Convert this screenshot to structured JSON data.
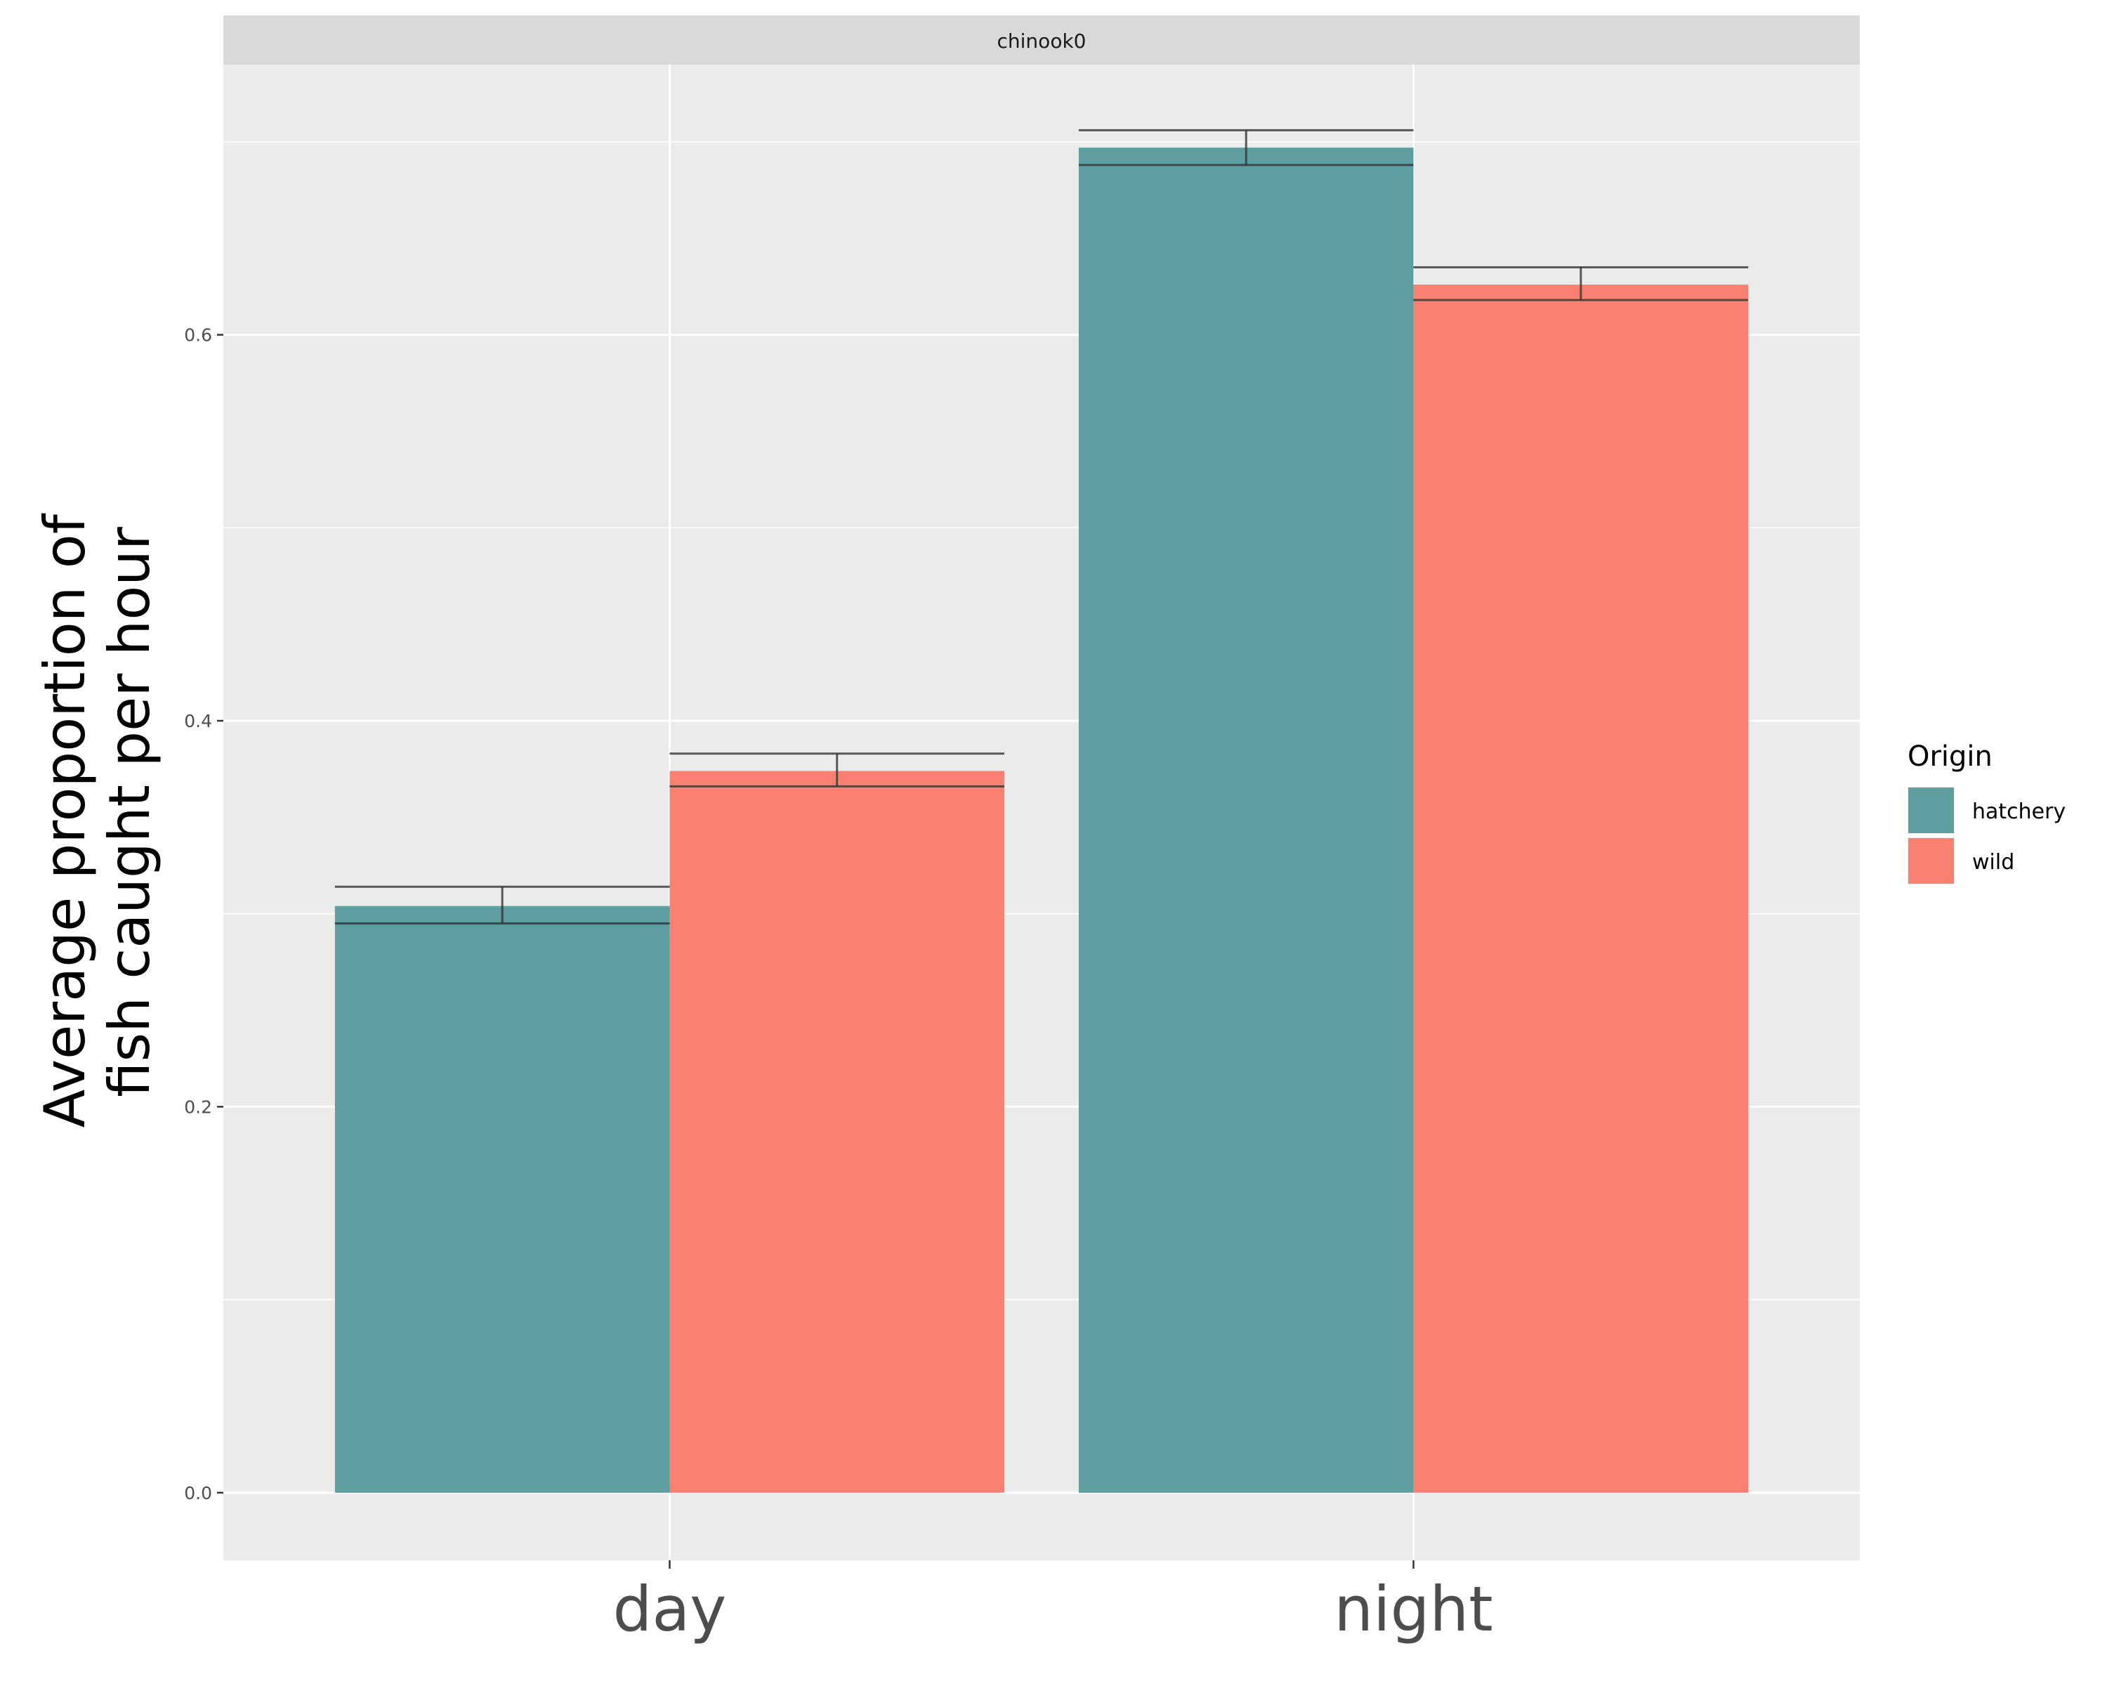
{
  "chart_data": {
    "type": "bar",
    "facet": "chinook0",
    "categories": [
      "day",
      "night"
    ],
    "series": [
      {
        "name": "hatchery",
        "color": "#5f9ea0",
        "values": [
          0.304,
          0.697
        ],
        "error_low": [
          0.295,
          0.688
        ],
        "error_high": [
          0.314,
          0.706
        ]
      },
      {
        "name": "wild",
        "color": "#fa8072",
        "values": [
          0.374,
          0.626
        ],
        "error_low": [
          0.366,
          0.618
        ],
        "error_high": [
          0.383,
          0.635
        ]
      }
    ],
    "xlabel": "",
    "ylabel_lines": [
      "Average proportion of",
      "fish caught per hour"
    ],
    "ylim": [
      -0.035,
      0.74
    ],
    "yticks": [
      0.0,
      0.2,
      0.4,
      0.6
    ],
    "ytick_labels": [
      "0.0",
      "0.2",
      "0.4",
      "0.6"
    ],
    "grid": true,
    "legend": {
      "title": "Origin",
      "position": "right"
    },
    "colors": {
      "panel": "#ebebeb",
      "grid": "#ffffff",
      "strip": "#d9d9d9",
      "errorbar": "#333333"
    }
  }
}
